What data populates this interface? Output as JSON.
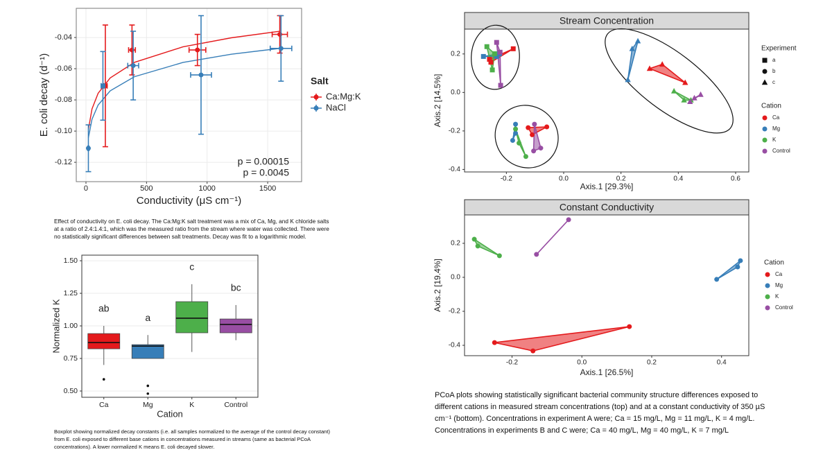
{
  "chart_data": [
    {
      "type": "scatter",
      "xlabel": "Conductivity (μS cm⁻¹)",
      "ylabel": "E. coli decay (d⁻¹)",
      "xlim": [
        -80,
        1780
      ],
      "ylim": [
        -0.1324,
        -0.0213
      ],
      "xticks": [
        0,
        500,
        1000,
        1500
      ],
      "yticks": [
        -0.04,
        -0.06,
        -0.08,
        {
          "value": -0.1,
          "label": "-0.10"
        },
        -0.12
      ],
      "grid": true,
      "legend_title": "Salt",
      "series": [
        {
          "name": "Ca:Mg:K",
          "color": "#e41a1c",
          "x": [
            160,
            380,
            920,
            1600
          ],
          "values": [
            -0.071,
            -0.048,
            -0.048,
            -0.038
          ],
          "errors": [
            0.039,
            0.016,
            0.01,
            0.012
          ],
          "xerrors": [
            15,
            28,
            69,
            63
          ],
          "fit": {
            "x": [
              20,
              50,
              100,
              200,
              400,
              800,
              1200,
              1600
            ],
            "values": [
              -0.0989,
              -0.0858,
              -0.0758,
              -0.0659,
              -0.0559,
              -0.046,
              -0.0402,
              -0.036
            ]
          }
        },
        {
          "name": "NaCl",
          "color": "#377eb8",
          "x": [
            20,
            140,
            390,
            950,
            1610
          ],
          "values": [
            -0.111,
            -0.071,
            -0.058,
            -0.064,
            -0.047
          ],
          "errors": [
            0.015,
            0.022,
            0.022,
            0.038,
            0.021
          ],
          "xerrors": [
            5,
            15,
            45,
            86,
            89
          ],
          "fit": {
            "x": [
              20,
              50,
              100,
              200,
              400,
              800,
              1200,
              1600
            ],
            "values": [
              -0.1043,
              -0.0924,
              -0.0833,
              -0.0742,
              -0.0651,
              -0.056,
              -0.0507,
              -0.047
            ]
          }
        }
      ],
      "annotations": [
        {
          "text": "p = 0.00015",
          "color": "#e41a1c"
        },
        {
          "text": "p = 0.0045",
          "color": "#377eb8"
        }
      ],
      "caption": "Effect of conductivity on E. coli decay. The Ca:Mg:K salt treatment was a mix of Ca, Mg, and K chloride salts at a ratio of 2.4:1.4:1, which was the measured ratio from the stream where water was collected. There were no statistically significant differences between salt treatments. Decay was fit to a logarithmic model."
    },
    {
      "type": "box",
      "xlabel": "Cation",
      "ylabel": "Normalized K",
      "categories": [
        "Ca",
        "Mg",
        "K",
        "Control"
      ],
      "colors": [
        "#e41a1c",
        "#377eb8",
        "#4daf4a",
        "#984ea3"
      ],
      "min": [
        0.7,
        0.75,
        0.8,
        0.89
      ],
      "q1": [
        0.824,
        0.75,
        0.947,
        0.947
      ],
      "median": [
        0.872,
        0.845,
        1.059,
        1.011
      ],
      "q3": [
        0.941,
        0.856,
        1.186,
        1.053
      ],
      "max": [
        1.0,
        0.93,
        1.32,
        1.16
      ],
      "outliers": [
        [
          0.59
        ],
        [
          0.54,
          0.48
        ],
        [],
        []
      ],
      "letters": [
        "ab",
        "a",
        "c",
        "bc"
      ],
      "ylim": [
        0.452,
        1.543
      ],
      "yticks": [
        {
          "value": 0.5,
          "label": "0.50"
        },
        {
          "value": 0.75,
          "label": "0.75"
        },
        {
          "value": 1,
          "label": "1.00"
        },
        {
          "value": 1.25,
          "label": "1.25"
        },
        {
          "value": 1.5,
          "label": "1.50"
        }
      ],
      "grid": true,
      "caption": "Boxplot showing normalized decay constants (i.e. all samples normalized to the average of the control decay constant) from E. coli exposed to different base cations in concentrations measured in streams (same as bacterial PCoA concentrations). A lower normalized K means E. coli decayed slower."
    },
    {
      "type": "scatter",
      "title": "Stream Concentration",
      "xlabel": "Axis.1   [29.3%]",
      "ylabel": "Axis.2   [14.5%]",
      "xlim": [
        -0.346,
        0.646
      ],
      "ylim": [
        -0.413,
        0.329
      ],
      "xticks": [
        -0.2,
        {
          "value": 0,
          "label": "0.0"
        },
        0.2,
        0.4,
        0.6
      ],
      "yticks": [
        0.2,
        {
          "value": 0,
          "label": "0.0"
        },
        -0.2,
        -0.4
      ],
      "grid": false,
      "polygons": true,
      "ellipses": true,
      "shape_legend_title": "Experiment",
      "experiments": [
        {
          "name": "a",
          "shape": "square"
        },
        {
          "name": "b",
          "shape": "circle"
        },
        {
          "name": "c",
          "shape": "triangle"
        }
      ],
      "legend_title": "Cation",
      "series": [
        {
          "name": "Ca",
          "color": "#e41a1c",
          "experiment": [
            "a",
            "a",
            "a",
            "b",
            "b",
            "b",
            "c",
            "c",
            "c"
          ],
          "x": [
            -0.176,
            -0.259,
            -0.254,
            -0.124,
            -0.059,
            -0.11,
            0.3,
            0.344,
            0.424
          ],
          "values": [
            0.227,
            0.172,
            0.157,
            -0.183,
            -0.179,
            -0.22,
            0.124,
            0.146,
            0.051
          ]
        },
        {
          "name": "Mg",
          "color": "#377eb8",
          "experiment": [
            "a",
            "a",
            "a",
            "b",
            "b",
            "b",
            "c",
            "c",
            "c"
          ],
          "x": [
            -0.28,
            -0.224,
            -0.234,
            -0.168,
            -0.168,
            -0.178,
            0.224,
            0.239,
            0.259
          ],
          "values": [
            0.187,
            0.201,
            0.187,
            -0.165,
            -0.212,
            -0.249,
            0.066,
            0.227,
            0.267
          ]
        },
        {
          "name": "K",
          "color": "#4daf4a",
          "experiment": [
            "a",
            "a",
            "a",
            "b",
            "b",
            "b",
            "c",
            "c",
            "c"
          ],
          "x": [
            -0.268,
            -0.249,
            -0.241,
            -0.132,
            -0.168,
            -0.156,
            0.385,
            0.42,
            0.444
          ],
          "values": [
            0.238,
            0.117,
            0.201,
            -0.333,
            -0.19,
            -0.263,
            0.007,
            -0.04,
            -0.04
          ]
        },
        {
          "name": "Control",
          "color": "#984ea3",
          "experiment": [
            "a",
            "a",
            "a",
            "b",
            "b",
            "b",
            "c",
            "c",
            "c"
          ],
          "x": [
            -0.234,
            -0.22,
            -0.222,
            -0.102,
            -0.105,
            -0.08,
            0.478,
            0.456,
            0.441
          ],
          "values": [
            0.26,
            0.037,
            0.209,
            -0.165,
            -0.304,
            -0.289,
            -0.011,
            -0.029,
            -0.048
          ]
        }
      ]
    },
    {
      "type": "scatter",
      "title": "Constant Conductivity",
      "xlabel": "Axis.1   [26.5%]",
      "ylabel": "Axis.2   [19.4%]",
      "xlim": [
        -0.336,
        0.478
      ],
      "ylim": [
        -0.461,
        0.367
      ],
      "xticks": [
        -0.2,
        {
          "value": 0,
          "label": "0.0"
        },
        0.2,
        0.4
      ],
      "yticks": [
        0.2,
        {
          "value": 0,
          "label": "0.0"
        },
        -0.2,
        -0.4
      ],
      "grid": false,
      "polygons": true,
      "legend_title": "Cation",
      "series": [
        {
          "name": "Ca",
          "color": "#e41a1c",
          "x": [
            -0.25,
            0.136,
            -0.14
          ],
          "values": [
            -0.384,
            -0.29,
            -0.433
          ]
        },
        {
          "name": "Mg",
          "color": "#377eb8",
          "x": [
            0.386,
            0.454,
            0.446
          ],
          "values": [
            -0.012,
            0.098,
            0.061
          ]
        },
        {
          "name": "K",
          "color": "#4daf4a",
          "x": [
            -0.308,
            -0.298,
            -0.236
          ],
          "values": [
            0.224,
            0.184,
            0.127
          ]
        },
        {
          "name": "Control",
          "color": "#984ea3",
          "x": [
            -0.038,
            -0.13
          ],
          "values": [
            0.339,
            0.135
          ]
        }
      ],
      "caption": "PCoA plots showing statistically significant bacterial community structure differences exposed to different cations in measured stream concentrations (top) and at a constant conductivity of 350 µS cm⁻¹ (bottom). Concentrations in experiment A were; Ca = 15 mg/L, Mg = 11 mg/L, K = 4 mg/L. Concentrations in experiments B and C were; Ca = 40 mg/L, Mg = 40 mg/L, K = 7 mg/L"
    }
  ]
}
